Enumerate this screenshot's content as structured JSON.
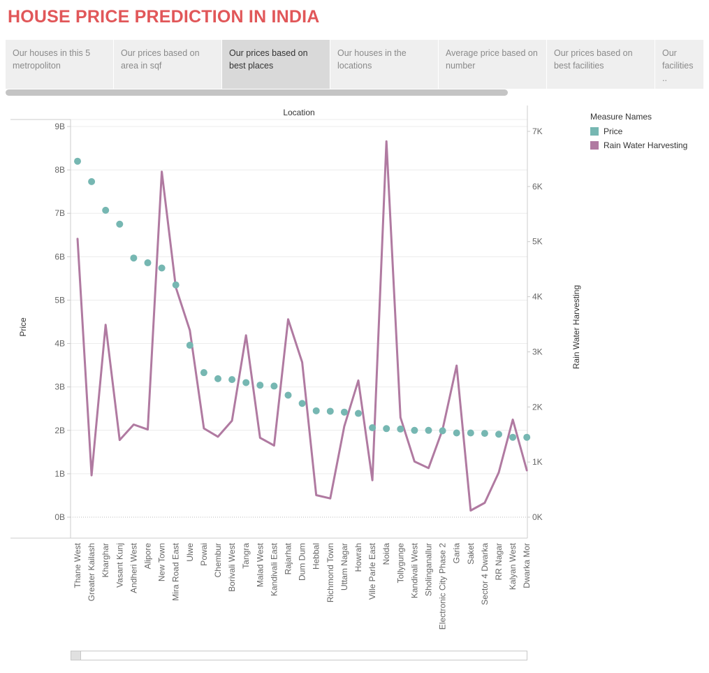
{
  "header": {
    "title": "HOUSE PRICE PREDICTION IN INDIA"
  },
  "colors": {
    "title": "#e15759",
    "price": "#76b7b2",
    "rain": "#b07aa1",
    "grid": "#ececec",
    "axis": "#cccccc",
    "text": "#666666"
  },
  "tabs": [
    {
      "label": "Our houses in this 5 metropoliton",
      "active": false
    },
    {
      "label": "Our prices based on area in sqf",
      "active": false
    },
    {
      "label": "Our prices based on best places",
      "active": true
    },
    {
      "label": "Our houses in the locations",
      "active": false
    },
    {
      "label": "Average price based on number",
      "active": false
    },
    {
      "label": "Our prices based on best facilities",
      "active": false
    },
    {
      "label": "Our facilities ..",
      "active": false
    }
  ],
  "legend": {
    "title": "Measure Names",
    "items": [
      {
        "label": "Price",
        "color": "#76b7b2"
      },
      {
        "label": "Rain Water Harvesting",
        "color": "#b07aa1"
      }
    ]
  },
  "chart_data": {
    "type": "dual-axis line + scatter",
    "column_header": "Location",
    "categories": [
      "Thane West",
      "Greater Kailash",
      "Kharghar",
      "Vasant Kunj",
      "Andheri West",
      "Alipore",
      "New Town",
      "Mira Road East",
      "Ulwe",
      "Powai",
      "Chembur",
      "Borivali West",
      "Tangra",
      "Malad West",
      "Kandivali East",
      "Rajarhat",
      "Dum Dum",
      "Hebbal",
      "Richmond Town",
      "Uttam Nagar",
      "Howrah",
      "Ville Parle East",
      "Noida",
      "Tollygunge",
      "Kandivali West",
      "Sholinganallur",
      "Electronic City Phase 2",
      "Garia",
      "Saket",
      "Sector 4 Dwarka",
      "RR Nagar",
      "Kalyan West",
      "Dwarka Mor"
    ],
    "left_axis": {
      "label": "Price",
      "min": 0,
      "max": 9000000000,
      "ticks": [
        0,
        1000000000,
        2000000000,
        3000000000,
        4000000000,
        5000000000,
        6000000000,
        7000000000,
        8000000000,
        9000000000
      ],
      "tick_labels": [
        "0B",
        "1B",
        "2B",
        "3B",
        "4B",
        "5B",
        "6B",
        "7B",
        "8B",
        "9B"
      ]
    },
    "right_axis": {
      "label": "Rain Water Harvesting",
      "min": 0,
      "max": 7000,
      "ticks": [
        0,
        1000,
        2000,
        3000,
        4000,
        5000,
        6000,
        7000
      ],
      "tick_labels": [
        "0K",
        "1K",
        "2K",
        "3K",
        "4K",
        "5K",
        "6K",
        "7K"
      ]
    },
    "series": [
      {
        "name": "Price",
        "type": "scatter",
        "axis": "left",
        "values": [
          8200000000,
          7730000000,
          7070000000,
          6750000000,
          5970000000,
          5860000000,
          5740000000,
          5350000000,
          3960000000,
          3330000000,
          3190000000,
          3170000000,
          3100000000,
          3040000000,
          3020000000,
          2810000000,
          2620000000,
          2450000000,
          2440000000,
          2420000000,
          2390000000,
          2060000000,
          2040000000,
          2030000000,
          2000000000,
          2000000000,
          1990000000,
          1940000000,
          1940000000,
          1930000000,
          1910000000,
          1840000000,
          1840000000
        ]
      },
      {
        "name": "Rain Water Harvesting",
        "type": "line",
        "axis": "right",
        "values": [
          5050,
          760,
          3490,
          1400,
          1680,
          1590,
          6270,
          4170,
          3390,
          1610,
          1460,
          1750,
          3300,
          1440,
          1300,
          3590,
          2810,
          400,
          340,
          1650,
          2480,
          670,
          6820,
          1810,
          1010,
          890,
          1590,
          2750,
          120,
          260,
          810,
          1770,
          850
        ]
      }
    ],
    "grid": true
  }
}
